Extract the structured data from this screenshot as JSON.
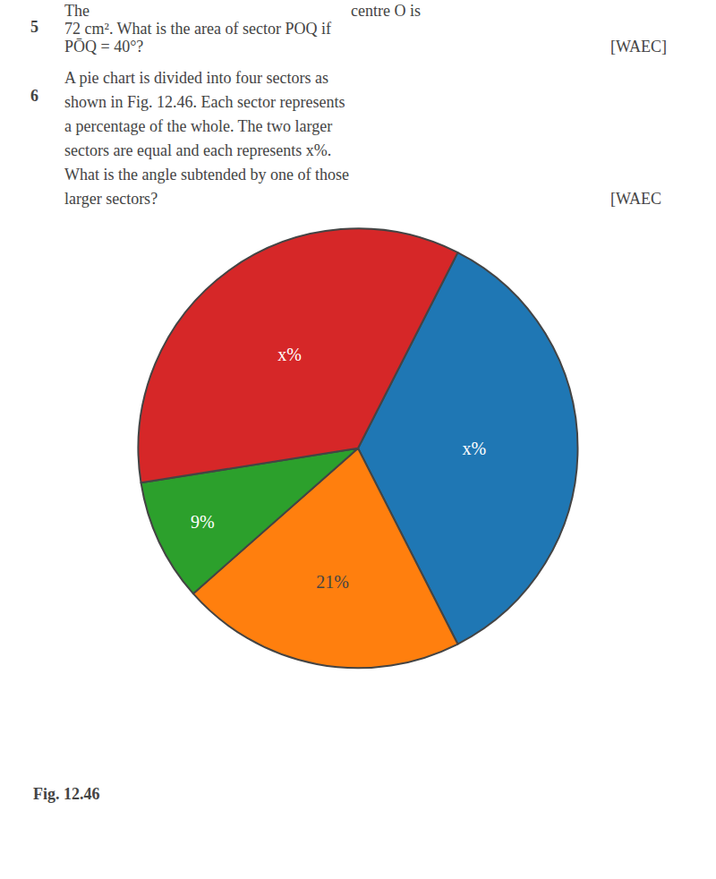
{
  "chart_data": {
    "type": "pie",
    "values": [
      35,
      21,
      9,
      35
    ],
    "value_labels": [
      "x%",
      "21%",
      "9%",
      "x%"
    ],
    "data_labels": true,
    "annotations": [
      "5",
      "The",
      "centre O is",
      "72 cm². What is the area of sector POQ if",
      "PŌQ = 40°?",
      "[WAEC]",
      "6",
      "A pie chart is divided into four sectors as",
      "shown in Fig. 12.46. Each sector represents",
      "a percentage of the whole. The two larger",
      "sectors are equal and each represents x%.",
      "What is the angle subtended by one of those",
      "larger sectors?",
      "[WAEC",
      "Fig. 12.46"
    ]
  }
}
